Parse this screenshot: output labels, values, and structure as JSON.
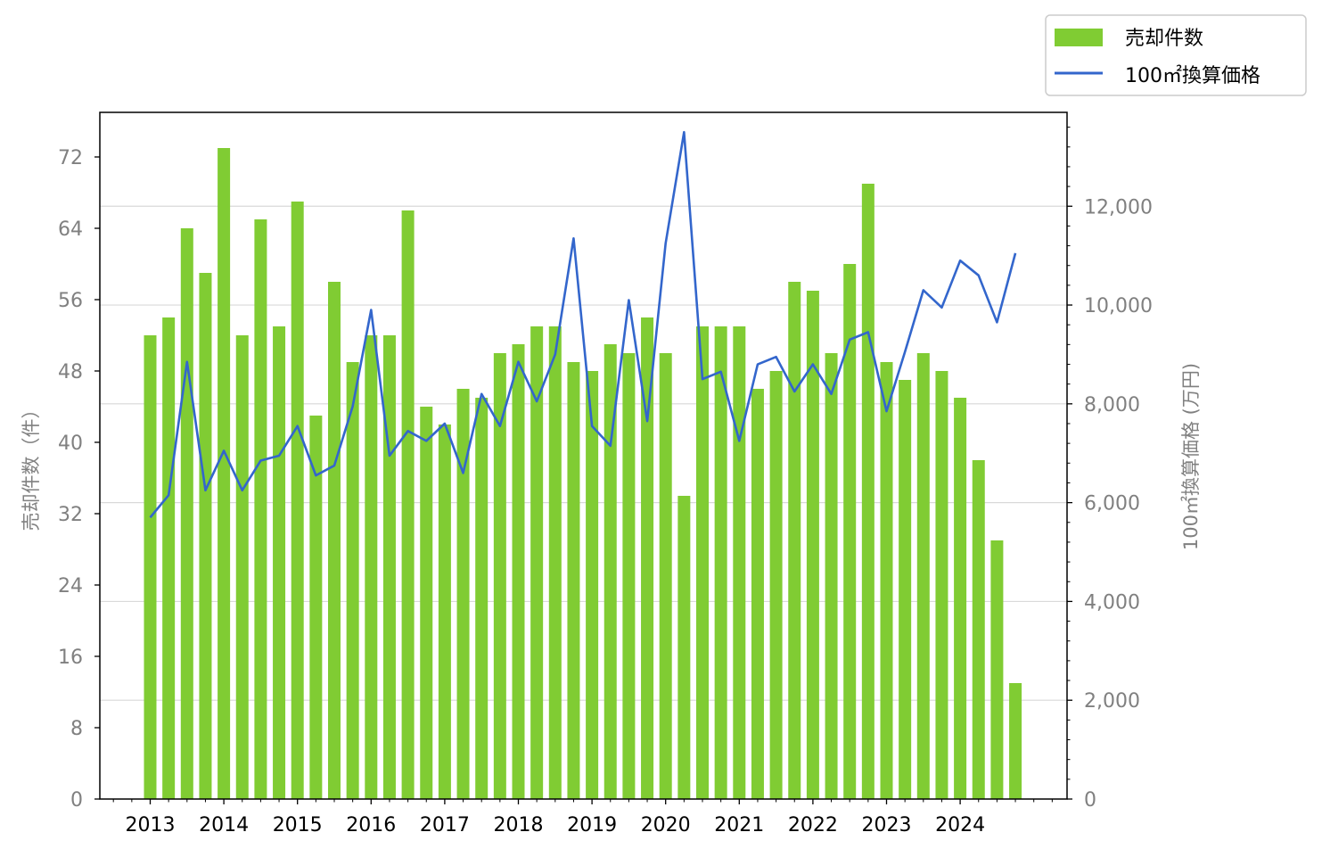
{
  "chart_data": {
    "type": "bar",
    "x_tick_labels": [
      "2013",
      "2014",
      "2015",
      "2016",
      "2017",
      "2018",
      "2019",
      "2020",
      "2021",
      "2022",
      "2023",
      "2024"
    ],
    "left_ylabel": "売却件数（件）",
    "right_ylabel": "100㎡換算価格 (万円)",
    "left_ylim": [
      0,
      77
    ],
    "right_ylim": [
      0,
      13900
    ],
    "left_ticks": [
      0,
      8,
      16,
      24,
      32,
      40,
      48,
      56,
      64,
      72
    ],
    "right_ticks": [
      0,
      2000,
      4000,
      6000,
      8000,
      10000,
      12000
    ],
    "right_tick_labels": [
      "0",
      "2,000",
      "4,000",
      "6,000",
      "8,000",
      "10,000",
      "12,000"
    ],
    "grid": "horizontal (right axis)",
    "legend_placement": "upper-right, above plot",
    "series": [
      {
        "name": "売却件数",
        "type": "bar",
        "axis": "left",
        "color": "#80cc33",
        "values": [
          52,
          54,
          64,
          59,
          73,
          52,
          65,
          53,
          67,
          43,
          58,
          49,
          52,
          52,
          66,
          44,
          42,
          46,
          45,
          50,
          51,
          53,
          53,
          49,
          48,
          51,
          50,
          54,
          50,
          34,
          53,
          53,
          53,
          46,
          48,
          58,
          57,
          50,
          60,
          69,
          49,
          47,
          50,
          48,
          45,
          38,
          29,
          13
        ]
      },
      {
        "name": "100㎡換算価格",
        "type": "line",
        "axis": "right",
        "color": "#3366cc",
        "values": [
          5700,
          6150,
          8850,
          6250,
          7050,
          6250,
          6850,
          6950,
          7550,
          6550,
          6750,
          7950,
          9900,
          6950,
          7450,
          7250,
          7600,
          6600,
          8200,
          7550,
          8850,
          8050,
          9000,
          11350,
          7550,
          7150,
          10100,
          7650,
          11250,
          13500,
          8500,
          8650,
          7250,
          8800,
          8950,
          8250,
          8800,
          8200,
          9300,
          9450,
          7850,
          9050,
          10300,
          9950,
          10900,
          10600,
          9650,
          11050
        ]
      }
    ]
  }
}
